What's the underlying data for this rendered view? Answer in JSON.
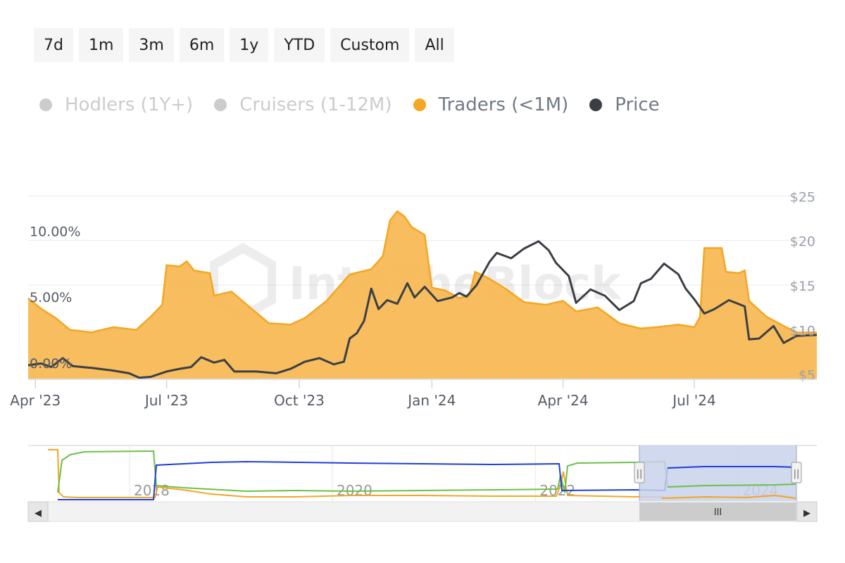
{
  "range_buttons": [
    "7d",
    "1m",
    "3m",
    "6m",
    "1y",
    "YTD",
    "Custom",
    "All"
  ],
  "legend": [
    {
      "label": "Hodlers (1Y+)",
      "color": "#cccccc",
      "visible": false
    },
    {
      "label": "Cruisers (1-12M)",
      "color": "#cccccc",
      "visible": false
    },
    {
      "label": "Traders (<1M)",
      "color": "#f5a623",
      "visible": true
    },
    {
      "label": "Price",
      "color": "#3b3f45",
      "visible": true
    }
  ],
  "watermark": "IntoTheBlock",
  "colors": {
    "traders_fill": "#f7b955",
    "traders_line": "#f5a623",
    "price_line": "#3b3f45",
    "nav_blue": "#1f3fd8",
    "nav_green": "#6cc04a",
    "nav_orange": "#f5a623",
    "nav_selection": "#c8d2ea"
  },
  "chart_data": {
    "type": "area",
    "x_range": [
      "2023-03-27",
      "2024-09-24"
    ],
    "x_tick_labels": [
      "Apr '23",
      "Jul '23",
      "Oct '23",
      "Jan '24",
      "Apr '24",
      "Jul '24"
    ],
    "y_left": {
      "ticks": [
        "0.00%",
        "5.00%",
        "10.00%"
      ],
      "range_pct": [
        -0.7,
        13.5
      ]
    },
    "y_right": {
      "ticks": [
        "$5",
        "$10",
        "$15",
        "$20",
        "$25"
      ],
      "range_usd": [
        4.5,
        25.5
      ]
    },
    "series": [
      {
        "name": "Traders (<1M)",
        "axis": "left",
        "unit": "%",
        "points": [
          [
            "2023-03-27",
            5.4
          ],
          [
            "2023-04-05",
            4.6
          ],
          [
            "2023-04-15",
            3.9
          ],
          [
            "2023-04-25",
            3.0
          ],
          [
            "2023-05-10",
            2.8
          ],
          [
            "2023-05-25",
            3.2
          ],
          [
            "2023-06-10",
            3.0
          ],
          [
            "2023-06-20",
            4.0
          ],
          [
            "2023-06-28",
            4.9
          ],
          [
            "2023-07-01",
            7.9
          ],
          [
            "2023-07-10",
            7.8
          ],
          [
            "2023-07-15",
            8.2
          ],
          [
            "2023-07-20",
            7.5
          ],
          [
            "2023-07-31",
            7.3
          ],
          [
            "2023-08-03",
            5.6
          ],
          [
            "2023-08-15",
            5.9
          ],
          [
            "2023-08-30",
            4.5
          ],
          [
            "2023-09-10",
            3.5
          ],
          [
            "2023-09-25",
            3.4
          ],
          [
            "2023-10-05",
            3.9
          ],
          [
            "2023-10-20",
            5.2
          ],
          [
            "2023-11-05",
            7.2
          ],
          [
            "2023-11-20",
            7.6
          ],
          [
            "2023-11-28",
            8.6
          ],
          [
            "2023-12-03",
            11.3
          ],
          [
            "2023-12-08",
            12.0
          ],
          [
            "2023-12-13",
            11.6
          ],
          [
            "2023-12-18",
            10.8
          ],
          [
            "2023-12-27",
            10.2
          ],
          [
            "2024-01-01",
            6.2
          ],
          [
            "2024-01-10",
            6.0
          ],
          [
            "2024-01-20",
            5.4
          ],
          [
            "2024-01-27",
            5.6
          ],
          [
            "2024-01-31",
            7.4
          ],
          [
            "2024-02-08",
            7.0
          ],
          [
            "2024-02-20",
            6.2
          ],
          [
            "2024-03-05",
            5.1
          ],
          [
            "2024-03-20",
            4.9
          ],
          [
            "2024-04-01",
            5.2
          ],
          [
            "2024-04-10",
            4.4
          ],
          [
            "2024-04-25",
            4.7
          ],
          [
            "2024-05-10",
            3.5
          ],
          [
            "2024-05-25",
            3.1
          ],
          [
            "2024-06-05",
            3.2
          ],
          [
            "2024-06-20",
            3.4
          ],
          [
            "2024-07-01",
            3.2
          ],
          [
            "2024-07-05",
            4.0
          ],
          [
            "2024-07-08",
            9.2
          ],
          [
            "2024-07-20",
            9.2
          ],
          [
            "2024-07-23",
            7.4
          ],
          [
            "2024-08-01",
            7.3
          ],
          [
            "2024-08-05",
            7.5
          ],
          [
            "2024-08-08",
            5.2
          ],
          [
            "2024-08-20",
            4.0
          ],
          [
            "2024-09-01",
            3.3
          ],
          [
            "2024-09-10",
            2.8
          ],
          [
            "2024-09-24",
            2.8
          ]
        ]
      },
      {
        "name": "Price",
        "axis": "right",
        "unit": "USD",
        "points": [
          [
            "2023-03-27",
            6.0
          ],
          [
            "2023-04-05",
            6.2
          ],
          [
            "2023-04-12",
            5.8
          ],
          [
            "2023-04-20",
            6.8
          ],
          [
            "2023-04-27",
            5.9
          ],
          [
            "2023-05-10",
            5.7
          ],
          [
            "2023-05-25",
            5.4
          ],
          [
            "2023-06-05",
            5.1
          ],
          [
            "2023-06-12",
            4.6
          ],
          [
            "2023-06-20",
            4.7
          ],
          [
            "2023-07-01",
            5.3
          ],
          [
            "2023-07-10",
            5.6
          ],
          [
            "2023-07-18",
            5.8
          ],
          [
            "2023-07-25",
            6.9
          ],
          [
            "2023-08-03",
            6.3
          ],
          [
            "2023-08-10",
            6.6
          ],
          [
            "2023-08-17",
            5.3
          ],
          [
            "2023-09-01",
            5.3
          ],
          [
            "2023-09-15",
            5.1
          ],
          [
            "2023-09-25",
            5.6
          ],
          [
            "2023-10-05",
            6.4
          ],
          [
            "2023-10-15",
            6.8
          ],
          [
            "2023-10-25",
            6.1
          ],
          [
            "2023-11-01",
            6.4
          ],
          [
            "2023-11-05",
            9.0
          ],
          [
            "2023-11-10",
            9.6
          ],
          [
            "2023-11-15",
            11.0
          ],
          [
            "2023-11-20",
            14.6
          ],
          [
            "2023-11-25",
            12.3
          ],
          [
            "2023-12-01",
            13.3
          ],
          [
            "2023-12-08",
            12.9
          ],
          [
            "2023-12-15",
            15.2
          ],
          [
            "2023-12-20",
            13.6
          ],
          [
            "2023-12-27",
            14.8
          ],
          [
            "2024-01-05",
            13.2
          ],
          [
            "2024-01-15",
            13.6
          ],
          [
            "2024-01-20",
            14.1
          ],
          [
            "2024-01-25",
            13.7
          ],
          [
            "2024-02-01",
            15.0
          ],
          [
            "2024-02-10",
            17.6
          ],
          [
            "2024-02-15",
            18.6
          ],
          [
            "2024-02-25",
            18.0
          ],
          [
            "2024-03-05",
            19.1
          ],
          [
            "2024-03-10",
            19.5
          ],
          [
            "2024-03-15",
            19.9
          ],
          [
            "2024-03-22",
            18.9
          ],
          [
            "2024-03-27",
            17.5
          ],
          [
            "2024-04-05",
            16.0
          ],
          [
            "2024-04-10",
            13.0
          ],
          [
            "2024-04-20",
            14.5
          ],
          [
            "2024-04-30",
            13.8
          ],
          [
            "2024-05-10",
            12.2
          ],
          [
            "2024-05-20",
            13.2
          ],
          [
            "2024-05-25",
            15.2
          ],
          [
            "2024-06-01",
            15.7
          ],
          [
            "2024-06-10",
            17.4
          ],
          [
            "2024-06-20",
            16.2
          ],
          [
            "2024-06-25",
            14.6
          ],
          [
            "2024-07-01",
            13.4
          ],
          [
            "2024-07-08",
            11.8
          ],
          [
            "2024-07-15",
            12.3
          ],
          [
            "2024-07-25",
            13.3
          ],
          [
            "2024-08-05",
            12.6
          ],
          [
            "2024-08-08",
            8.9
          ],
          [
            "2024-08-15",
            9.0
          ],
          [
            "2024-08-25",
            10.4
          ],
          [
            "2024-09-01",
            8.5
          ],
          [
            "2024-09-10",
            9.3
          ],
          [
            "2024-09-24",
            9.4
          ]
        ]
      }
    ]
  },
  "navigator": {
    "x_labels": [
      "2018",
      "2020",
      "2022",
      "2024"
    ],
    "selection_start": "2023-03-27",
    "selection_end": "2024-09-24",
    "handle_glyph": "||",
    "scroll_grip": "III",
    "scroll_left": "◀",
    "scroll_right": "▶"
  }
}
